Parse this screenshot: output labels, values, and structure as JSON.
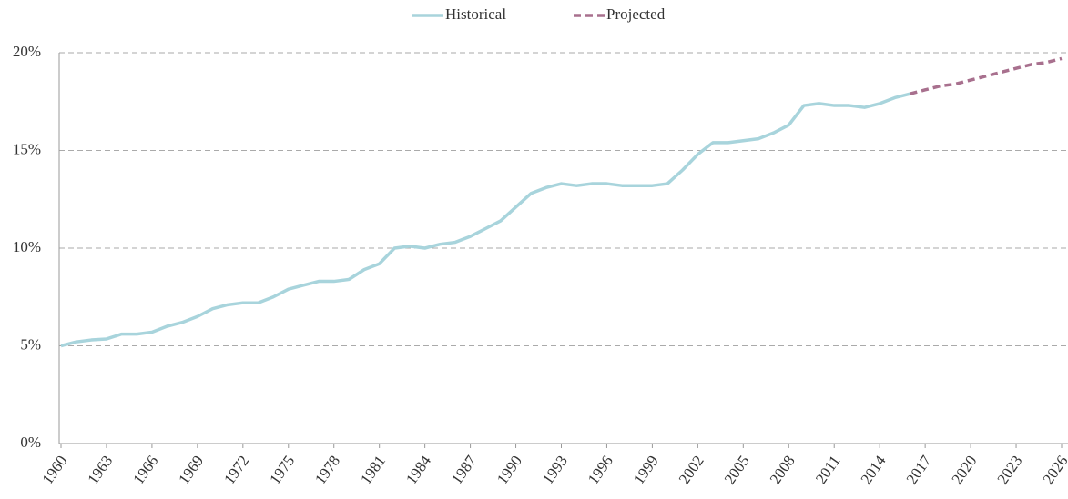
{
  "chart_data": {
    "type": "line",
    "series": [
      {
        "name": "Historical",
        "color": "#a8d4dc",
        "dashed": false,
        "x": [
          1960,
          1961,
          1962,
          1963,
          1964,
          1965,
          1966,
          1967,
          1968,
          1969,
          1970,
          1971,
          1972,
          1973,
          1974,
          1975,
          1976,
          1977,
          1978,
          1979,
          1980,
          1981,
          1982,
          1983,
          1984,
          1985,
          1986,
          1987,
          1988,
          1989,
          1990,
          1991,
          1992,
          1993,
          1994,
          1995,
          1996,
          1997,
          1998,
          1999,
          2000,
          2001,
          2002,
          2003,
          2004,
          2005,
          2006,
          2007,
          2008,
          2009,
          2010,
          2011,
          2012,
          2013,
          2014,
          2015,
          2016
        ],
        "values": [
          5.0,
          5.2,
          5.3,
          5.35,
          5.6,
          5.6,
          5.7,
          6.0,
          6.2,
          6.5,
          6.9,
          7.1,
          7.2,
          7.2,
          7.5,
          7.9,
          8.1,
          8.3,
          8.3,
          8.4,
          8.9,
          9.2,
          10.0,
          10.1,
          10.0,
          10.2,
          10.3,
          10.6,
          11.0,
          11.4,
          12.1,
          12.8,
          13.1,
          13.3,
          13.2,
          13.3,
          13.3,
          13.2,
          13.2,
          13.2,
          13.3,
          14.0,
          14.8,
          15.4,
          15.4,
          15.5,
          15.6,
          15.9,
          16.3,
          17.3,
          17.4,
          17.3,
          17.3,
          17.2,
          17.4,
          17.7,
          17.9
        ]
      },
      {
        "name": "Projected",
        "color": "#a8708e",
        "dashed": true,
        "x": [
          2016,
          2017,
          2018,
          2019,
          2020,
          2021,
          2022,
          2023,
          2024,
          2025,
          2026
        ],
        "values": [
          17.9,
          18.1,
          18.3,
          18.4,
          18.6,
          18.8,
          19.0,
          19.2,
          19.4,
          19.5,
          19.7
        ]
      }
    ],
    "xlim": [
      1960,
      2026
    ],
    "xticks": [
      1960,
      1963,
      1966,
      1969,
      1972,
      1975,
      1978,
      1981,
      1984,
      1987,
      1990,
      1993,
      1996,
      1999,
      2002,
      2005,
      2008,
      2011,
      2014,
      2017,
      2020,
      2023,
      2026
    ],
    "ylim": [
      0,
      20
    ],
    "yticks": [
      {
        "value": 0,
        "label": "0%"
      },
      {
        "value": 5,
        "label": "5%"
      },
      {
        "value": 10,
        "label": "10%"
      },
      {
        "value": 15,
        "label": "15%"
      },
      {
        "value": 20,
        "label": "20%"
      }
    ],
    "grid": true,
    "legend": "top"
  }
}
